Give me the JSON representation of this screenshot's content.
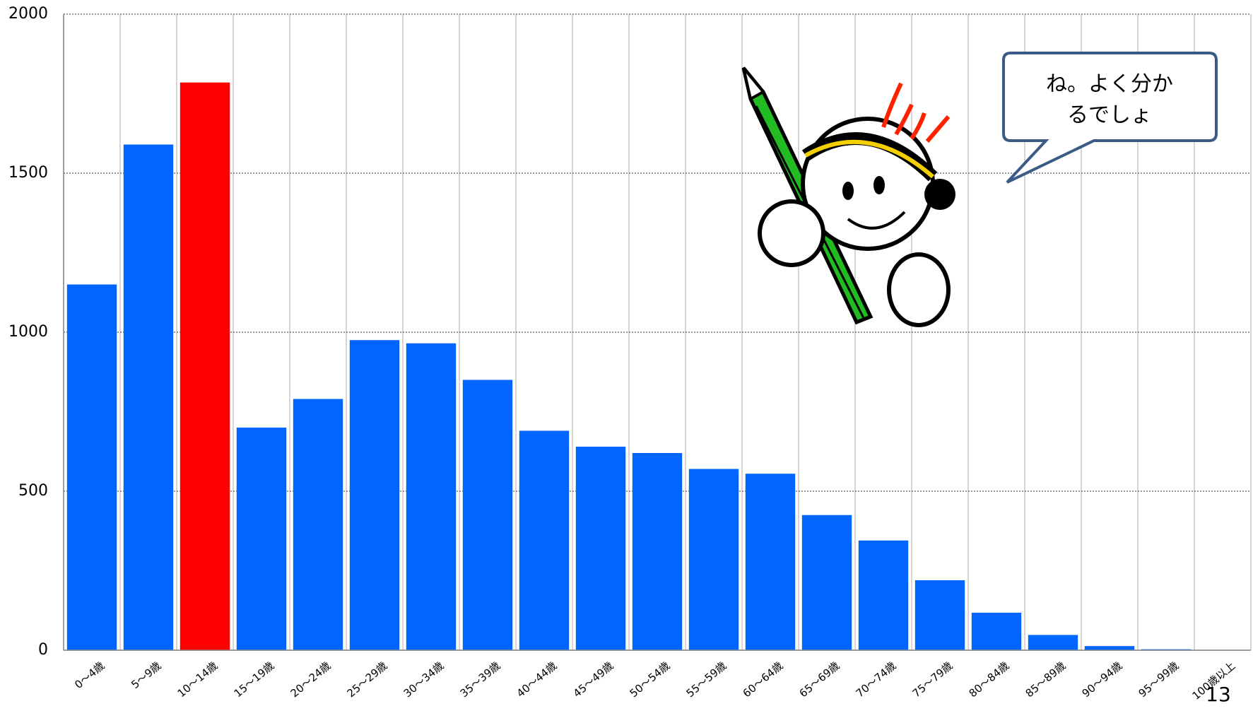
{
  "chart_data": {
    "type": "bar",
    "categories": [
      "0～4歳",
      "5～9歳",
      "10～14歳",
      "15～19歳",
      "20～24歳",
      "25～29歳",
      "30～34歳",
      "35～39歳",
      "40～44歳",
      "45～49歳",
      "50～54歳",
      "55～59歳",
      "60～64歳",
      "65～69歳",
      "70～74歳",
      "75～79歳",
      "80～84歳",
      "85～89歳",
      "90～94歳",
      "95～99歳",
      "100歳以上"
    ],
    "values": [
      1150,
      1590,
      1785,
      700,
      790,
      975,
      965,
      850,
      690,
      640,
      620,
      570,
      555,
      425,
      345,
      220,
      118,
      48,
      13,
      3,
      0
    ],
    "colors": [
      "#0066ff",
      "#0066ff",
      "#ff0000",
      "#0066ff",
      "#0066ff",
      "#0066ff",
      "#0066ff",
      "#0066ff",
      "#0066ff",
      "#0066ff",
      "#0066ff",
      "#0066ff",
      "#0066ff",
      "#0066ff",
      "#0066ff",
      "#0066ff",
      "#0066ff",
      "#0066ff",
      "#0066ff",
      "#0066ff",
      "#0066ff"
    ],
    "ylim": [
      0,
      2000
    ],
    "yticks": [
      0,
      500,
      1000,
      1500,
      2000
    ],
    "grid": true,
    "annotation": [
      "ね。よく分か",
      "るでしょ"
    ]
  },
  "page_number": "13"
}
